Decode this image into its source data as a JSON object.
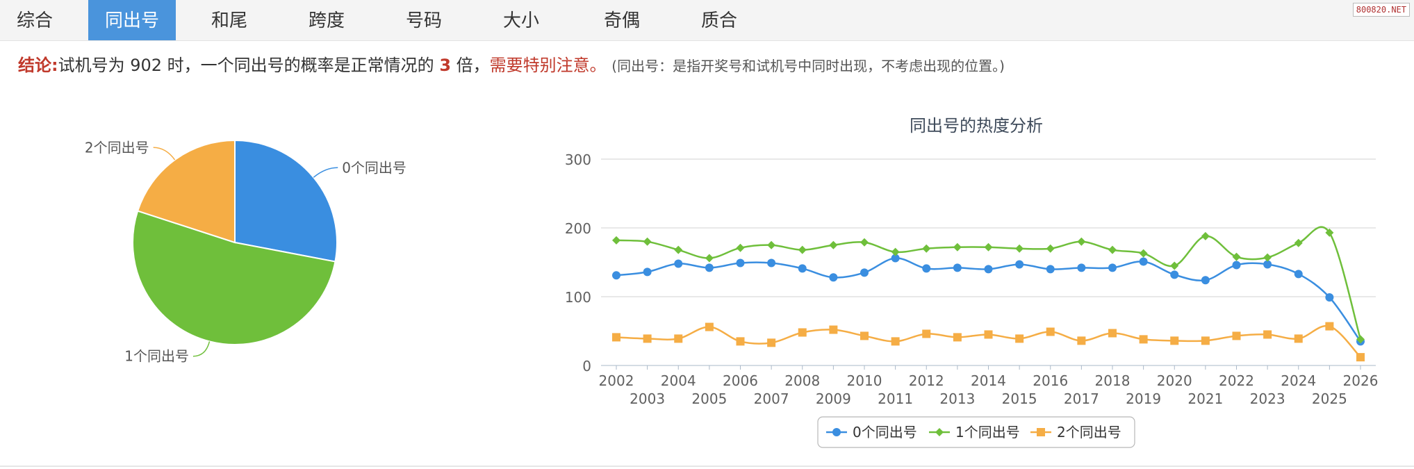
{
  "tabs": [
    {
      "label": "综合",
      "active": false
    },
    {
      "label": "同出号",
      "active": true
    },
    {
      "label": "和尾",
      "active": false
    },
    {
      "label": "跨度",
      "active": false
    },
    {
      "label": "号码",
      "active": false
    },
    {
      "label": "大小",
      "active": false
    },
    {
      "label": "奇偶",
      "active": false
    },
    {
      "label": "质合",
      "active": false
    }
  ],
  "watermark": "800820.NET",
  "conclusion": {
    "label": "结论:",
    "text1": "试机号为 902 时，一个同出号的概率是正常情况的 ",
    "multiple": "3",
    "text2": " 倍，",
    "warning": "需要特别注意。",
    "note": "(同出号：是指开奖号和试机号中同时出现，不考虑出现的位置。)"
  },
  "colors": {
    "c0": "#3a8ee0",
    "c1": "#6fbf3b",
    "c2": "#f5ad45",
    "tab_active": "#4a94dc",
    "alert": "#c0392b"
  },
  "chart_data": [
    {
      "type": "pie",
      "labels": [
        "0个同出号",
        "1个同出号",
        "2个同出号"
      ],
      "values": [
        28,
        52,
        20
      ],
      "colors": [
        "#3a8ee0",
        "#6fbf3b",
        "#f5ad45"
      ]
    },
    {
      "type": "line",
      "title": "同出号的热度分析",
      "categories": [
        "2002",
        "2003",
        "2004",
        "2005",
        "2006",
        "2007",
        "2008",
        "2009",
        "2010",
        "2011",
        "2012",
        "2013",
        "2014",
        "2015",
        "2016",
        "2017",
        "2018",
        "2019",
        "2020",
        "2021",
        "2022",
        "2023",
        "2024",
        "2025",
        "2026"
      ],
      "series": [
        {
          "name": "0个同出号",
          "color": "#3a8ee0",
          "marker": "circle",
          "values": [
            131,
            136,
            148,
            142,
            149,
            149,
            141,
            128,
            135,
            156,
            141,
            142,
            140,
            147,
            140,
            142,
            142,
            151,
            132,
            124,
            146,
            147,
            133,
            99,
            35
          ]
        },
        {
          "name": "1个同出号",
          "color": "#6fbf3b",
          "marker": "diamond",
          "values": [
            182,
            180,
            168,
            156,
            171,
            175,
            168,
            175,
            179,
            165,
            170,
            172,
            172,
            170,
            170,
            180,
            168,
            163,
            145,
            188,
            158,
            157,
            178,
            193,
            38
          ]
        },
        {
          "name": "2个同出号",
          "color": "#f5ad45",
          "marker": "square",
          "values": [
            41,
            39,
            39,
            56,
            35,
            33,
            48,
            52,
            43,
            35,
            46,
            41,
            45,
            39,
            49,
            36,
            47,
            38,
            36,
            36,
            43,
            45,
            39,
            57,
            12
          ]
        }
      ],
      "ylim": [
        0,
        300
      ],
      "yticks": [
        0,
        100,
        200,
        300
      ],
      "grid": true,
      "legend": "bottom"
    }
  ]
}
